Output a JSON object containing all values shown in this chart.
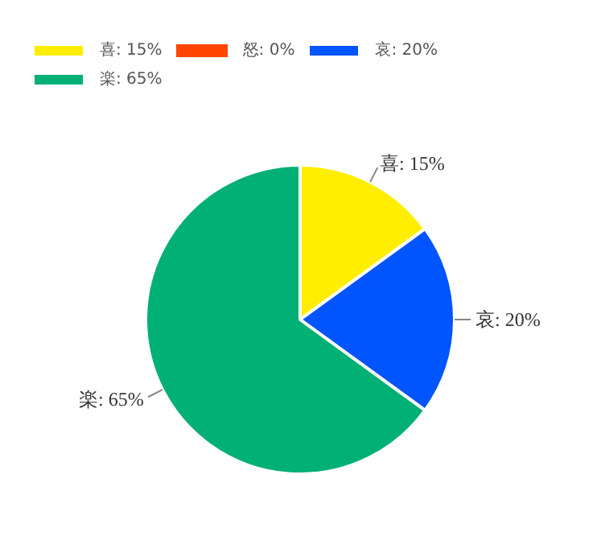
{
  "chart_data": {
    "type": "pie",
    "categories": [
      "喜: 15%",
      "怒: 0%",
      "哀: 20%",
      "楽: 65%"
    ],
    "values": [
      15,
      0,
      20,
      65
    ],
    "colors": [
      "#ffee00",
      "#ff4500",
      "#0055ff",
      "#00b074"
    ],
    "value_labels": [
      "喜: 15%",
      null,
      "哀: 20%",
      "楽: 65%"
    ],
    "legend": "top left"
  }
}
